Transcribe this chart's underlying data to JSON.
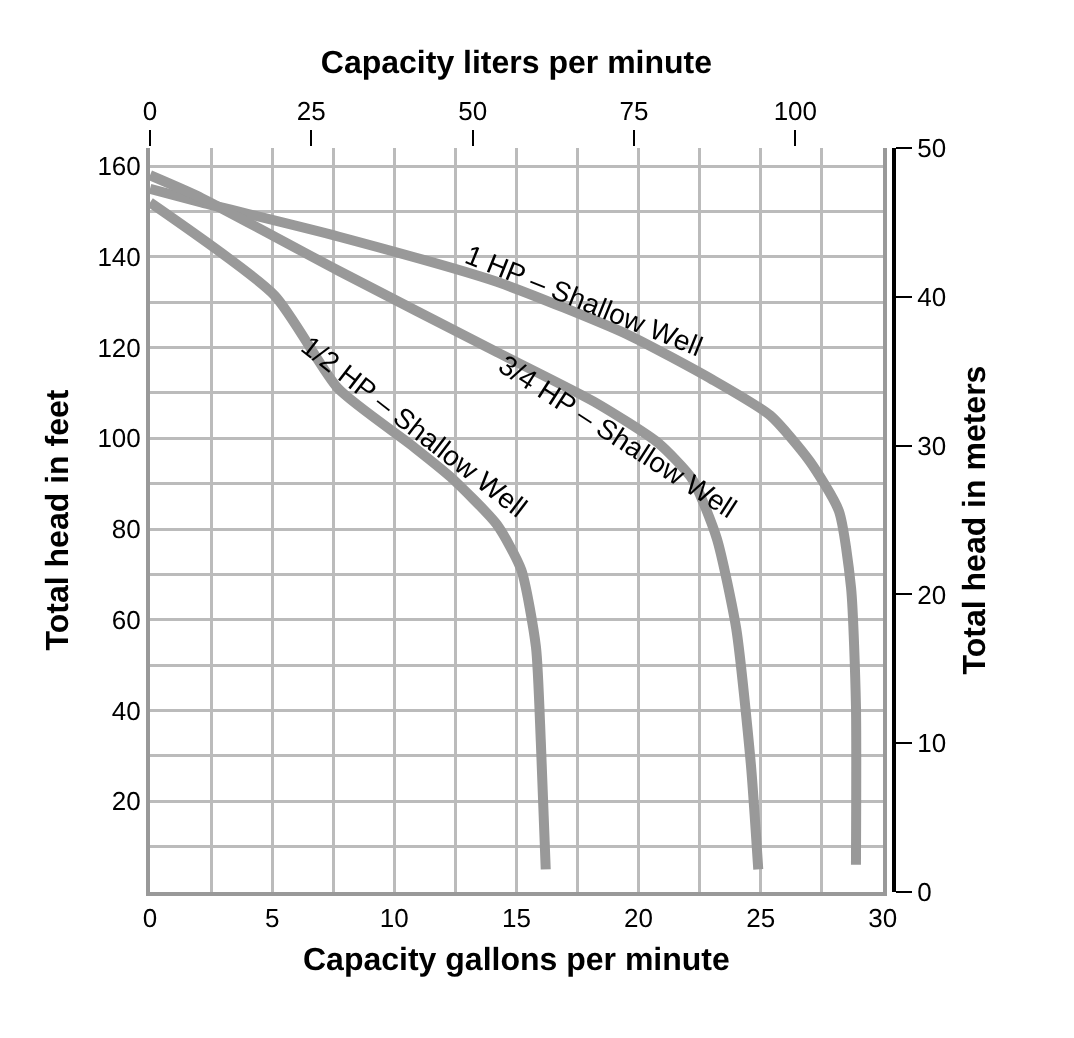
{
  "chart_data": {
    "type": "line",
    "xlabel": "Capacity gallons per minute",
    "ylabel": "Total head in feet",
    "x2label": "Capacity liters per minute",
    "y2label": "Total head in meters",
    "xlim": [
      0,
      30
    ],
    "xticks": [
      0,
      {
        "value": 2.5,
        "label": null
      },
      5,
      {
        "value": 7.5,
        "label": null
      },
      10,
      {
        "value": 12.5,
        "label": null
      },
      15,
      {
        "value": 17.5,
        "label": null
      },
      20,
      {
        "value": 22.5,
        "label": null
      },
      25,
      {
        "value": 27.5,
        "label": null
      },
      30
    ],
    "ylim": [
      0,
      164
    ],
    "yticks": [
      {
        "value": 0,
        "label": null
      },
      {
        "value": 10,
        "label": null
      },
      20,
      {
        "value": 30,
        "label": null
      },
      40,
      {
        "value": 50,
        "label": null
      },
      60,
      {
        "value": 70,
        "label": null
      },
      80,
      {
        "value": 90,
        "label": null
      },
      100,
      {
        "value": 110,
        "label": null
      },
      120,
      {
        "value": 130,
        "label": null
      },
      140,
      {
        "value": 150,
        "label": null
      },
      160
    ],
    "x2lim": [
      0,
      113.56
    ],
    "x2ticks": [
      0,
      25,
      50,
      75,
      100
    ],
    "y2lim": [
      0,
      50
    ],
    "y2ticks": [
      0,
      10,
      20,
      30,
      40,
      50
    ],
    "grid": true,
    "legend": false,
    "marker": "none",
    "line_style": "solid",
    "series": [
      {
        "name": "1 HP – Shallow Well",
        "color": "#999999",
        "x": [
          0,
          2.1,
          7.7,
          14.2,
          19.5,
          23,
          25.4,
          27,
          28.2,
          28.7,
          28.9,
          28.9
        ],
        "values": [
          155,
          152,
          144.5,
          134.5,
          123,
          113,
          105,
          95,
          84,
          67,
          41,
          6
        ]
      },
      {
        "name": "3/4 HP – Shallow Well",
        "color": "#999999",
        "x": [
          0,
          2.1,
          7.7,
          14.2,
          18.2,
          20.8,
          22.2,
          23.2,
          24,
          24.6,
          24.9
        ],
        "values": [
          158,
          153,
          137,
          119,
          108,
          99,
          91,
          78,
          58,
          28,
          5
        ]
      },
      {
        "name": "1/2 HP – Shallow Well",
        "color": "#999999",
        "x": [
          0,
          5.1,
          7.7,
          10.7,
          12.3,
          14.2,
          15.2,
          15.8,
          16,
          16.2
        ],
        "values": [
          152,
          131.5,
          111,
          98.5,
          91.5,
          81,
          71,
          54,
          33,
          5
        ]
      }
    ]
  }
}
